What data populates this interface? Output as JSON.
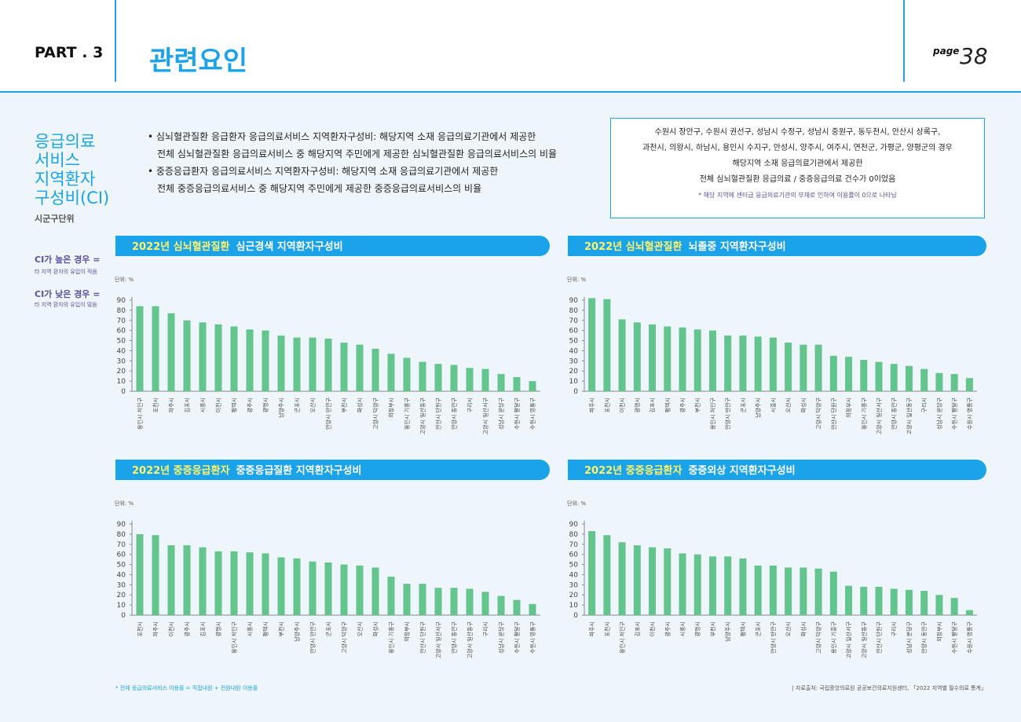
{
  "header": {
    "part": "PART . 3",
    "title": "관련요인",
    "page_label": "page",
    "page_number": "38"
  },
  "sidebar": {
    "title": [
      "응급의료",
      "서비스",
      "지역환자",
      "구성비(CI)"
    ],
    "subtitle": "시군구단위",
    "legend": [
      {
        "head": "CI가 높은 경우 =",
        "text": "타 지역 환자의 유입이 적음"
      },
      {
        "head": "CI가 낮은 경우 =",
        "text": "타 지역 환자의 유입이 많음"
      }
    ]
  },
  "bullets": [
    [
      "• 심뇌혈관질환 응급환자 응급의료서비스 지역환자구성비: 해당지역 소재 응급의료기관에서 제공한",
      "전체 심뇌혈관질환 응급의료서비스 중 해당지역 주민에게 제공한 심뇌혈관질환 응급의료서비스의 비율"
    ],
    [
      "• 중증응급환자 응급의료서비스 지역환자구성비: 해당지역 소재 응급의료기관에서 제공한",
      "전체 중증응급의료서비스 중 해당지역 주민에게 제공한 중증응급의료서비스의 비율"
    ]
  ],
  "notice": {
    "lines": [
      "수원시 장안구, 수원시 권선구, 성남시 수정구, 성남시 중원구, 동두천시, 안산시 상록구,",
      "과천시, 의왕시, 하남시, 용인시 수지구, 안성시, 양주시, 여주시, 연천군, 가평군, 양평군의 경우",
      "해당지역 소재 응급의료기관에서 제공한",
      "전체 심뇌혈관질환 응급의료 / 중증응급의료 건수가 0이었음"
    ],
    "note": "* 해당 지역에 센터급 응급의료기관의 부재로 인하여 이용률이 0으로 나타남"
  },
  "footer": {
    "left": "* 전체 응급의료서비스 이용률 = 직접내원 + 전원내원 이용률",
    "right": "| 자료출처: 국립중앙의료원 공공보건의료지원센터, 「2022 지역별 필수의료 통계」"
  },
  "chart_data": [
    {
      "type": "bar",
      "title_highlight": "2022년 심뇌혈관질환",
      "title": "심근경색 지역환자구성비",
      "unit": "단위: %",
      "color": "#63c48e",
      "ylim": [
        0,
        90
      ],
      "yticks": [
        0,
        10,
        20,
        30,
        40,
        50,
        60,
        70,
        80,
        90
      ],
      "categories": [
        "용인시 처인구",
        "포천시",
        "파주시",
        "김포시",
        "시흥시",
        "이천시",
        "평택시",
        "광주시",
        "광명시",
        "남양주시",
        "군포시",
        "오산시",
        "안양시 만안구",
        "부천시",
        "화성시",
        "고양시 덕양구",
        "의정부시",
        "용인시 기흥구",
        "고양시 일산동구",
        "안산시 단원구",
        "안양시 동안구",
        "구리시",
        "고양시 일산서구",
        "성남시 분당구",
        "수원시 팔달구",
        "수원시 영통구"
      ],
      "values": [
        84,
        84,
        77,
        70,
        68,
        66,
        64,
        61,
        60,
        55,
        53,
        53,
        52,
        48,
        46,
        42,
        37,
        33,
        29,
        27,
        26,
        23,
        22,
        17,
        14,
        10
      ]
    },
    {
      "type": "bar",
      "title_highlight": "2022년 심뇌혈관질환",
      "title": "뇌졸중 지역환자구성비",
      "unit": "단위: %",
      "color": "#63c48e",
      "ylim": [
        0,
        90
      ],
      "yticks": [
        0,
        10,
        20,
        30,
        40,
        50,
        60,
        70,
        80,
        90
      ],
      "categories": [
        "파주시",
        "포천시",
        "이천시",
        "광명시",
        "김포시",
        "평택시",
        "광주시",
        "부천시",
        "용인시 처인구",
        "안양시 만안구",
        "군포시",
        "남양주시",
        "시흥시",
        "오산시",
        "화성시",
        "고양시 덕양구",
        "안산시 단원구",
        "의정부시",
        "용인시 기흥구",
        "고양시 일산서구",
        "안양시 동안구",
        "고양시 일산동구",
        "구리시",
        "성남시 분당구",
        "수원시 팔달구",
        "수원시 영통구"
      ],
      "values": [
        92,
        91,
        71,
        68,
        66,
        64,
        63,
        61,
        60,
        55,
        55,
        54,
        53,
        48,
        46,
        46,
        35,
        34,
        31,
        29,
        27,
        25,
        22,
        18,
        17,
        13
      ]
    },
    {
      "type": "bar",
      "title_highlight": "2022년 중증응급환자",
      "title": "중증응급질환 지역환자구성비",
      "unit": "단위: %",
      "color": "#63c48e",
      "ylim": [
        0,
        90
      ],
      "yticks": [
        0,
        10,
        20,
        30,
        40,
        50,
        60,
        70,
        80,
        90
      ],
      "categories": [
        "포천시",
        "파주시",
        "이천시",
        "광주시",
        "김포시",
        "광명시",
        "용인시 처인구",
        "시흥시",
        "평택시",
        "부천시",
        "남양주시",
        "안양시 만안구",
        "군포시",
        "고양시 덕양구",
        "오산시",
        "화성시",
        "용인시 기흥구",
        "의정부시",
        "안산시 단원구",
        "고양시 일산서구",
        "안양시 동안구",
        "고양시 일산동구",
        "구리시",
        "성남시 분당구",
        "수원시 팔달구",
        "수원시 영통구"
      ],
      "values": [
        80,
        79,
        69,
        69,
        67,
        63,
        63,
        62,
        61,
        57,
        56,
        53,
        52,
        50,
        49,
        47,
        38,
        31,
        31,
        27,
        27,
        26,
        23,
        19,
        15,
        11
      ]
    },
    {
      "type": "bar",
      "title_highlight": "2022년 중증응급환자",
      "title": "중증외상 지역환자구성비",
      "unit": "단위: %",
      "color": "#63c48e",
      "ylim": [
        0,
        90
      ],
      "yticks": [
        0,
        10,
        20,
        30,
        40,
        50,
        60,
        70,
        80,
        90
      ],
      "categories": [
        "파주시",
        "포천시",
        "용인시 처인구",
        "김포시",
        "이천시",
        "광주시",
        "시흥시",
        "광명시",
        "부천시",
        "남양주시",
        "평택시",
        "군포시",
        "안양시 만안구",
        "오산시",
        "화성시",
        "고양시 덕양구",
        "용인시 기흥구",
        "고양시 일산서구",
        "고양시 일산동구",
        "안산시 단원구",
        "구리시",
        "성남시 분당구",
        "안양시 동안구",
        "의정부시",
        "수원시 팔달구",
        "수원시 영통구"
      ],
      "values": [
        83,
        79,
        72,
        69,
        67,
        66,
        61,
        60,
        58,
        58,
        56,
        49,
        49,
        47,
        47,
        46,
        43,
        29,
        28,
        28,
        26,
        25,
        24,
        20,
        17,
        5
      ]
    }
  ]
}
